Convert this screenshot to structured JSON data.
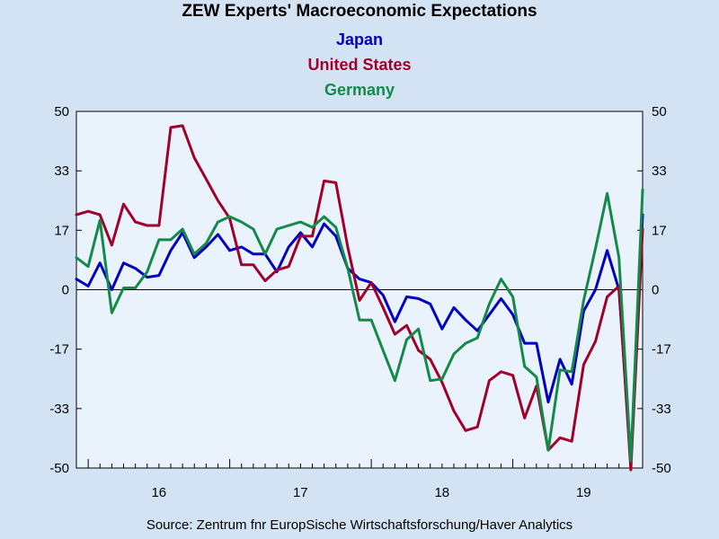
{
  "title": "ZEW Experts' Macroeconomic Expectations",
  "source": "Source:  Zentrum fnr EuropSische Wirtschaftsforschung/Haver Analytics",
  "chart_data": {
    "type": "line",
    "title": "ZEW Experts' Macroeconomic Expectations",
    "ylim": [
      -50,
      50
    ],
    "yticks": [
      "50",
      "33",
      "17",
      "0",
      "-17",
      "-33",
      "-50"
    ],
    "ytick_values": [
      50,
      33.33,
      16.67,
      0,
      -16.67,
      -33.33,
      -50
    ],
    "x_labels": [
      "16",
      "17",
      "18",
      "19"
    ],
    "x_label_values": [
      2016.0,
      2017.0,
      2018.0,
      2019.0
    ],
    "x_start": 2015.917,
    "x_step": 0.08333,
    "x_range": [
      2015.917,
      2019.917
    ],
    "grid": false,
    "zero_line": true,
    "series": [
      {
        "name": "Japan",
        "color": "#0000c0",
        "values": [
          3,
          1,
          7.5,
          0,
          7.5,
          6,
          3.5,
          4,
          11,
          16,
          9,
          12,
          15.5,
          11,
          12,
          10,
          10,
          5,
          12,
          16,
          12,
          18.5,
          15,
          6,
          3,
          2,
          -1.5,
          -9,
          -2,
          -2.5,
          -4,
          -11,
          -5,
          -8.5,
          -11.5,
          -7,
          -2.5,
          -7,
          -15,
          -15,
          -31.5,
          -19.5,
          -26.5,
          -6,
          0,
          11,
          0,
          -48,
          21
        ]
      },
      {
        "name": "United States",
        "color": "#a0002a",
        "values": [
          21,
          22,
          21,
          12.5,
          24,
          19,
          18,
          18,
          45.5,
          46,
          37,
          31,
          25,
          20,
          7,
          7,
          2.5,
          5.5,
          6.5,
          15,
          15,
          30.5,
          30,
          12,
          -3,
          2,
          -5,
          -12.5,
          -10,
          -17,
          -19.5,
          -26,
          -34,
          -39.5,
          -38.5,
          -25.5,
          -23,
          -24,
          -36,
          -27,
          -45,
          -41.5,
          -42.5,
          -21,
          -14.5,
          -2,
          1,
          -50.5,
          17
        ]
      },
      {
        "name": "Germany",
        "color": "#138a4a",
        "values": [
          9,
          6.5,
          19.5,
          -6.5,
          0.5,
          0.5,
          5,
          14,
          14,
          17,
          10,
          13,
          19,
          20.5,
          19,
          17,
          10,
          17,
          18,
          19,
          17.5,
          20.5,
          17.5,
          6,
          -8.5,
          -8.5,
          -17,
          -25.5,
          -14,
          -11,
          -25.5,
          -25,
          -18,
          -15,
          -13.5,
          -4,
          3,
          -2,
          -21.5,
          -24.5,
          -45,
          -22.5,
          -23,
          -3,
          11.5,
          27,
          9,
          -48,
          28
        ]
      }
    ]
  }
}
